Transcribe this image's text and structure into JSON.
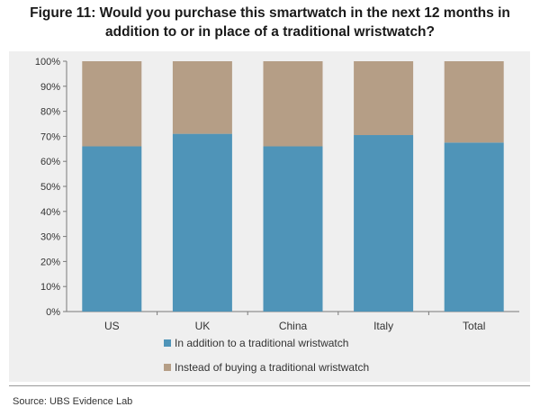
{
  "title": {
    "line1": "Figure 11: Would you purchase this smartwatch in the next 12 months in",
    "line2": "addition to or in place of a traditional wristwatch?"
  },
  "source": "Source: UBS Evidence Lab",
  "colors": {
    "addition": "#4f94b8",
    "instead": "#b59e86",
    "frame": "#efefef",
    "axis": "#7a7a7a"
  },
  "chart_data": {
    "type": "bar",
    "stacked": true,
    "categories": [
      "US",
      "UK",
      "China",
      "Italy",
      "Total"
    ],
    "series": [
      {
        "name": "In addition to a traditional wristwatch",
        "values": [
          66,
          71,
          66,
          70.5,
          67.5
        ]
      },
      {
        "name": "Instead of buying a traditional wristwatch",
        "values": [
          34,
          29,
          34,
          29.5,
          32.5
        ]
      }
    ],
    "yticks": [
      "0%",
      "10%",
      "20%",
      "30%",
      "40%",
      "50%",
      "60%",
      "70%",
      "80%",
      "90%",
      "100%"
    ],
    "ylim": [
      0,
      100
    ],
    "title": "Would you purchase this smartwatch in the next 12 months in addition to or in place of a traditional wristwatch?",
    "xlabel": "",
    "ylabel": "",
    "legend": "bottom"
  }
}
